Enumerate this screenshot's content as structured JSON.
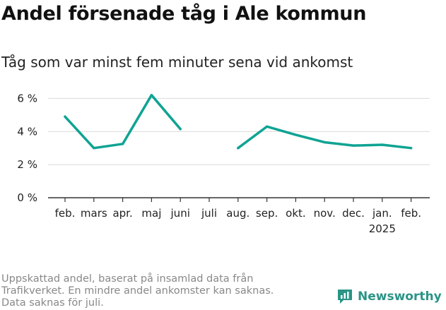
{
  "title": "Andel försenade tåg i Ale kommun",
  "subtitle": "Tåg som var minst fem minuter sena vid ankomst",
  "note_lines": [
    "Uppskattad andel, baserat på insamlad data från",
    "Trafikverket. En mindre andel ankomster kan saknas.",
    "Data saknas för juli."
  ],
  "brand": {
    "name": "Newsworthy",
    "icon": "newsworthy-logo-icon",
    "color": "#2a9486"
  },
  "colors": {
    "series": "#0fa393",
    "grid": "#d9d9d9",
    "axis": "#333333"
  },
  "chart_data": {
    "type": "line",
    "categories": [
      "feb.",
      "mars",
      "apr.",
      "maj",
      "juni",
      "juli",
      "aug.",
      "sep.",
      "okt.",
      "nov.",
      "dec.",
      "jan.",
      "feb."
    ],
    "category_sublabels": [
      "",
      "",
      "",
      "",
      "",
      "",
      "",
      "",
      "",
      "",
      "",
      "2025",
      ""
    ],
    "series": [
      {
        "values": [
          4.9,
          3.0,
          3.25,
          6.2,
          4.15,
          null,
          3.0,
          4.3,
          3.8,
          3.35,
          3.15,
          3.2,
          3.0
        ]
      }
    ],
    "yticks": [
      0,
      2,
      4,
      6
    ],
    "ytick_labels": [
      "0 %",
      "2 %",
      "4 %",
      "6 %"
    ],
    "ylim": [
      0,
      6.4
    ],
    "grid": true,
    "legend": "none"
  }
}
